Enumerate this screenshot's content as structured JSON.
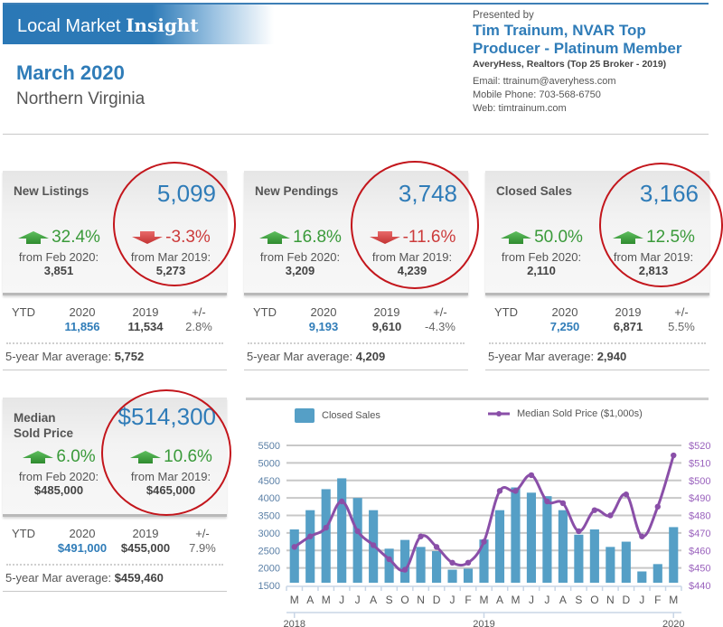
{
  "header": {
    "banner_plain": "Local Market ",
    "banner_strong": "Insight",
    "title": "March 2020",
    "subtitle": "Northern Virginia"
  },
  "presenter": {
    "presented_by": "Presented by",
    "name": "Tim Trainum, NVAR Top Producer - Platinum Member",
    "broker": "AveryHess, Realtors (Top 25 Broker - 2019)",
    "email": "Email: ttrainum@averyhess.com",
    "phone": "Mobile Phone: 703-568-6750",
    "web": "Web: timtrainum.com"
  },
  "colors": {
    "brand_blue": "#2f7cb8",
    "up_green": "#3a9a3a",
    "down_red": "#cc3b3b",
    "circle_red": "#c3161c",
    "bar_blue": "#559fc6",
    "line_purple": "#8a4fa8"
  },
  "ytd_labels": {
    "ytd": "YTD",
    "y2020": "2020",
    "y2019": "2019",
    "diff": "+/-"
  },
  "cards": [
    {
      "label": "New Listings",
      "value": "5,099",
      "change_month": {
        "direction": "up",
        "icon": "arrow-up-icon",
        "pct": "32.4%",
        "from": "from Feb 2020:",
        "prev": "3,851"
      },
      "change_year": {
        "direction": "down",
        "icon": "arrow-down-icon",
        "pct": "-3.3%",
        "from": "from Mar 2019:",
        "prev": "5,273"
      },
      "ytd": {
        "v2020": "11,856",
        "v2019": "11,534",
        "diff": "2.8%"
      },
      "avg_label": "5-year Mar average:",
      "avg_value": "5,752"
    },
    {
      "label": "New Pendings",
      "value": "3,748",
      "change_month": {
        "direction": "up",
        "icon": "arrow-up-icon",
        "pct": "16.8%",
        "from": "from Feb 2020:",
        "prev": "3,209"
      },
      "change_year": {
        "direction": "down",
        "icon": "arrow-down-icon",
        "pct": "-11.6%",
        "from": "from Mar 2019:",
        "prev": "4,239"
      },
      "ytd": {
        "v2020": "9,193",
        "v2019": "9,610",
        "diff": "-4.3%"
      },
      "avg_label": "5-year Mar average:",
      "avg_value": "4,209"
    },
    {
      "label": "Closed Sales",
      "value": "3,166",
      "change_month": {
        "direction": "up",
        "icon": "arrow-up-icon",
        "pct": "50.0%",
        "from": "from Feb 2020:",
        "prev": "2,110"
      },
      "change_year": {
        "direction": "up",
        "icon": "arrow-up-icon",
        "pct": "12.5%",
        "from": "from Mar 2019:",
        "prev": "2,813"
      },
      "ytd": {
        "v2020": "7,250",
        "v2019": "6,871",
        "diff": "5.5%"
      },
      "avg_label": "5-year Mar average:",
      "avg_value": "2,940"
    },
    {
      "label": "Median Sold Price",
      "label_line1": "Median",
      "label_line2": "Sold Price",
      "value": "$514,300",
      "change_month": {
        "direction": "up",
        "icon": "arrow-up-icon",
        "pct": "6.0%",
        "from": "from Feb 2020:",
        "prev": "$485,000"
      },
      "change_year": {
        "direction": "up",
        "icon": "arrow-up-icon",
        "pct": "10.6%",
        "from": "from Mar 2019:",
        "prev": "$465,000"
      },
      "ytd": {
        "v2020": "$491,000",
        "v2019": "$455,000",
        "diff": "7.9%"
      },
      "avg_label": "5-year Mar average:",
      "avg_value": "$459,460"
    }
  ],
  "chart_data": {
    "type": "bar+line",
    "title": "",
    "legend": [
      "Closed Sales",
      "Median Sold Price ($1,000s)"
    ],
    "legend_position": "top",
    "categories": [
      "M",
      "A",
      "M",
      "J",
      "J",
      "A",
      "S",
      "O",
      "N",
      "D",
      "J",
      "F",
      "M",
      "A",
      "M",
      "J",
      "J",
      "A",
      "S",
      "O",
      "N",
      "D",
      "J",
      "F",
      "M"
    ],
    "year_labels": [
      "2018",
      "2019",
      "2020"
    ],
    "series": [
      {
        "name": "Closed Sales",
        "type": "bar",
        "axis": "left",
        "values": [
          3100,
          3650,
          4250,
          4560,
          4000,
          3650,
          2550,
          2800,
          2600,
          2480,
          1950,
          1980,
          2813,
          3650,
          4300,
          4150,
          4050,
          3650,
          2950,
          3100,
          2600,
          2750,
          1900,
          2110,
          3166
        ]
      },
      {
        "name": "Median Sold Price ($1,000s)",
        "type": "line",
        "axis": "right",
        "values": [
          462,
          468,
          473,
          488,
          471,
          463,
          455,
          449,
          468,
          462,
          453,
          453,
          465,
          494,
          494,
          503,
          488,
          487,
          471,
          483,
          480,
          492,
          468,
          485,
          514.3
        ]
      }
    ],
    "y_left": {
      "range": [
        1500,
        5500
      ],
      "ticks": [
        "1500",
        "2000",
        "2500",
        "3000",
        "3500",
        "4000",
        "4500",
        "5000",
        "5500"
      ]
    },
    "y_right": {
      "range": [
        440,
        520
      ],
      "ticks": [
        "$440",
        "$450",
        "$460",
        "$470",
        "$480",
        "$490",
        "$500",
        "$510",
        "$520"
      ]
    },
    "grid": true
  }
}
